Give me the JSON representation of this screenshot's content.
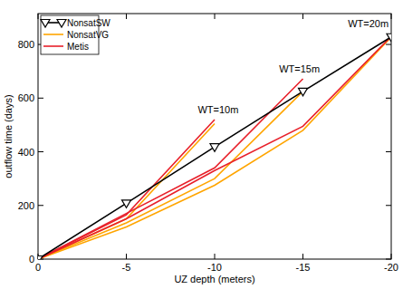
{
  "chart_data": {
    "type": "line",
    "x_label": "UZ depth (meters)",
    "y_label": "outflow time (days)",
    "xlim": [
      0,
      -20
    ],
    "xticks": [
      0,
      -5,
      -10,
      -15,
      -20
    ],
    "ylim": [
      0,
      915
    ],
    "yticks": [
      0,
      200,
      400,
      600,
      800
    ],
    "grid": false,
    "legend": "upper left",
    "series": [
      {
        "name": "NonsatSW",
        "color": "#000000",
        "marker": "triangle-down",
        "x": [
          0,
          -5,
          -10,
          -15,
          -20
        ],
        "values": [
          0,
          208,
          418,
          625,
          828
        ]
      },
      {
        "name": "NonsatVG",
        "color": "#ffa500",
        "x": [
          0,
          -5,
          -10
        ],
        "values": [
          0,
          150,
          505
        ]
      },
      {
        "name": "NonsatVG",
        "color": "#ffa500",
        "x": [
          0,
          -5,
          -10,
          -15
        ],
        "values": [
          0,
          135,
          300,
          625
        ]
      },
      {
        "name": "NonsatVG",
        "color": "#ffa500",
        "x": [
          0,
          -5,
          -10,
          -15,
          -20
        ],
        "values": [
          0,
          120,
          275,
          480,
          828
        ]
      },
      {
        "name": "Metis",
        "color": "#e8202a",
        "x": [
          0,
          -5,
          -10
        ],
        "values": [
          0,
          165,
          520
        ]
      },
      {
        "name": "Metis",
        "color": "#e8202a",
        "x": [
          0,
          -5,
          -10,
          -15
        ],
        "values": [
          0,
          170,
          340,
          672
        ]
      },
      {
        "name": "Metis",
        "color": "#e8202a",
        "x": [
          0,
          -5,
          -10,
          -15,
          -20
        ],
        "values": [
          0,
          150,
          330,
          495,
          830
        ]
      }
    ],
    "annotations": [
      {
        "text": "WT=10m",
        "x": -10.2,
        "y": 545
      },
      {
        "text": "WT=15m",
        "x": -14.8,
        "y": 695
      },
      {
        "text": "WT=20m",
        "x": -18.7,
        "y": 865
      }
    ]
  }
}
